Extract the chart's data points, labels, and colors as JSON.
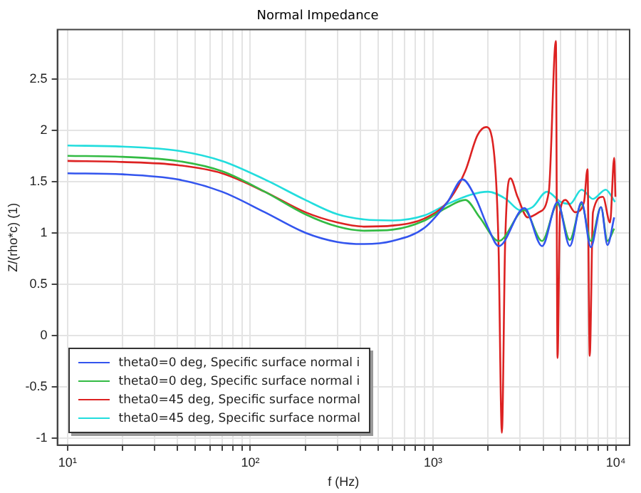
{
  "chart_data": {
    "type": "line",
    "title": "Normal Impedance",
    "xlabel": "f (Hz)",
    "ylabel": "Z/(rho*c) (1)",
    "log": "x",
    "grid": true,
    "legend": "bottom left",
    "marker": "none",
    "line_style": "solid",
    "xlim": [
      8.8,
      11900
    ],
    "ylim": [
      -1.07,
      2.98
    ],
    "xticks": [
      {
        "value": 10,
        "label": "10¹"
      },
      {
        "value": 20,
        "label": null
      },
      {
        "value": 30,
        "label": null
      },
      {
        "value": 40,
        "label": null
      },
      {
        "value": 50,
        "label": null
      },
      {
        "value": 60,
        "label": null
      },
      {
        "value": 70,
        "label": null
      },
      {
        "value": 80,
        "label": null
      },
      {
        "value": 90,
        "label": null
      },
      {
        "value": 100,
        "label": "10²"
      },
      {
        "value": 200,
        "label": null
      },
      {
        "value": 300,
        "label": null
      },
      {
        "value": 400,
        "label": null
      },
      {
        "value": 500,
        "label": null
      },
      {
        "value": 600,
        "label": null
      },
      {
        "value": 700,
        "label": null
      },
      {
        "value": 800,
        "label": null
      },
      {
        "value": 900,
        "label": null
      },
      {
        "value": 1000,
        "label": "10³"
      },
      {
        "value": 2000,
        "label": null
      },
      {
        "value": 3000,
        "label": null
      },
      {
        "value": 4000,
        "label": null
      },
      {
        "value": 5000,
        "label": null
      },
      {
        "value": 6000,
        "label": null
      },
      {
        "value": 7000,
        "label": null
      },
      {
        "value": 8000,
        "label": null
      },
      {
        "value": 9000,
        "label": null
      },
      {
        "value": 10000,
        "label": "10⁴"
      }
    ],
    "yticks": [
      -1,
      -0.5,
      0,
      0.5,
      1,
      1.5,
      2,
      2.5
    ],
    "series": [
      {
        "name": "theta0=0 deg, Specific surface normal i",
        "color": "#3355ee",
        "x": [
          10,
          20,
          40,
          70,
          120,
          200,
          300,
          420,
          600,
          900,
          1200,
          1450,
          1700,
          2000,
          2290,
          3160,
          3950,
          4800,
          5600,
          6500,
          7300,
          8300,
          9000,
          9800
        ],
        "values": [
          1.58,
          1.57,
          1.52,
          1.4,
          1.2,
          1.0,
          0.91,
          0.89,
          0.92,
          1.05,
          1.3,
          1.52,
          1.35,
          1.05,
          0.87,
          1.24,
          0.87,
          1.3,
          0.87,
          1.3,
          0.86,
          1.25,
          0.88,
          1.15
        ]
      },
      {
        "name": "theta0=0 deg, Specific surface normal i",
        "color": "#33bb44",
        "x": [
          10,
          20,
          40,
          70,
          120,
          200,
          300,
          420,
          600,
          900,
          1200,
          1500,
          1800,
          2290,
          3160,
          3950,
          4800,
          5600,
          6500,
          7300,
          8300,
          9000,
          9800
        ],
        "values": [
          1.75,
          1.74,
          1.7,
          1.6,
          1.4,
          1.18,
          1.06,
          1.02,
          1.03,
          1.12,
          1.25,
          1.32,
          1.15,
          0.92,
          1.22,
          0.92,
          1.28,
          0.93,
          1.28,
          0.92,
          1.25,
          0.92,
          1.04
        ]
      },
      {
        "name": "theta0=45 deg, Specific surface normal",
        "color": "#dd2222",
        "x": [
          10,
          20,
          40,
          70,
          120,
          200,
          300,
          420,
          600,
          900,
          1200,
          1500,
          1750,
          1950,
          2150,
          2280,
          2380,
          2480,
          2650,
          2900,
          3300,
          3800,
          4300,
          4700,
          4800,
          4950,
          5300,
          6000,
          6700,
          7000,
          7200,
          7500,
          8500,
          9300,
          9800,
          9950
        ],
        "values": [
          1.7,
          1.69,
          1.66,
          1.58,
          1.4,
          1.2,
          1.1,
          1.06,
          1.07,
          1.14,
          1.3,
          1.6,
          1.95,
          2.03,
          1.8,
          0.9,
          -0.95,
          0.9,
          1.53,
          1.35,
          1.15,
          1.2,
          1.4,
          2.87,
          -0.22,
          1.2,
          1.32,
          1.2,
          1.3,
          1.62,
          -0.2,
          1.2,
          1.35,
          1.1,
          1.73,
          1.35
        ]
      },
      {
        "name": "theta0=45 deg, Specific surface normal",
        "color": "#22dddd",
        "x": [
          10,
          20,
          40,
          70,
          120,
          200,
          300,
          420,
          600,
          900,
          1200,
          1600,
          2000,
          2500,
          3000,
          3500,
          4200,
          5000,
          5600,
          6500,
          7500,
          8800,
          9900
        ],
        "values": [
          1.85,
          1.84,
          1.8,
          1.7,
          1.52,
          1.32,
          1.18,
          1.13,
          1.12,
          1.17,
          1.28,
          1.37,
          1.4,
          1.33,
          1.22,
          1.25,
          1.4,
          1.3,
          1.28,
          1.42,
          1.33,
          1.42,
          1.3
        ]
      }
    ]
  }
}
